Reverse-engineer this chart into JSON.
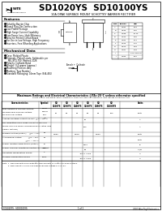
{
  "bg_color": "#ffffff",
  "title": "SD1020YS  SD10100YS",
  "subtitle": "10A DPAK SURFACE MOUNT SCHOTTKY BARRIER RECTIFIER",
  "features_title": "Features",
  "features": [
    "Schottky Barrier Chip",
    "Guard Ring Die Construction",
    "Low Profile Package",
    "High Surge Current Capability",
    "Low Power Loss, High Efficiency",
    "Ideal for Printed Circuit Board",
    "For Use in Low Voltage, High Frequency",
    "Inverters, Free Wheeling Applications"
  ],
  "mech_title": "Mechanical Data",
  "mech": [
    "Case: Molded Plastic",
    "Terminals: Plated Leads, Solderable per",
    "MIL-STD-750, Method 2026",
    "Polarity: Cathode Band",
    "Weight: 0.4 grams (approx.)",
    "Mounting Position: Any",
    "Marking: Type Number",
    "Standard Packaging: 16mm Tape (EIA-481)"
  ],
  "dim_cols": [
    "Dim",
    "Inches",
    "mm"
  ],
  "dim_data": [
    [
      "A",
      "0.232",
      "5.89"
    ],
    [
      "B",
      "0.189",
      "4.80"
    ],
    [
      "C",
      "0.398",
      "10.10"
    ],
    [
      "D",
      "0.060",
      "1.52"
    ],
    [
      "E",
      "0.044",
      "1.12"
    ],
    [
      "F",
      "0.055",
      "1.40"
    ],
    [
      "G",
      "0.100",
      "2.54"
    ],
    [
      "H",
      "0.041",
      "1.04"
    ],
    [
      "I",
      "",
      "0.95 Typical"
    ],
    [
      "J",
      "0.236",
      "6.00"
    ]
  ],
  "table_title": "Maximum Ratings and Electrical Characteristics @TA=25°C unless otherwise specified",
  "table_note": "Single Phase, half wave, 60Hz, resistive or inductive load. For capacitive load, derate current by 20%.",
  "col_headers": [
    "Characteristics",
    "Symbol",
    "SD\n1020YS",
    "SD\n1030YS",
    "SD\n1040YS",
    "SD\n1060YS",
    "SD\n1080YS",
    "SD\n10100YS",
    "Units"
  ],
  "rows": [
    {
      "char": [
        "Peak Repetitive Reverse Voltage",
        "Working Peak Reverse Voltage",
        "DC Blocking Voltage"
      ],
      "sym": [
        "VRRM",
        "VRWM",
        "VDC"
      ],
      "vals": [
        "20",
        "30",
        "40",
        "60",
        "80",
        "100",
        "Volts"
      ]
    },
    {
      "char": [
        "Average Rectified Output Current  @TA=105°C"
      ],
      "sym": [
        "IO"
      ],
      "vals": [
        "",
        "",
        "",
        "",
        "",
        "10",
        "A"
      ]
    },
    {
      "char": [
        "Non-Repetitive Peak Surge Current 8.3ms",
        "Single half sine-wave superimposed on rated load",
        "(JEDEC Method)"
      ],
      "sym": [
        "IFSM"
      ],
      "vals": [
        "",
        "",
        "",
        "",
        "",
        "100",
        "A"
      ]
    },
    {
      "char": [
        "Forward Voltage(Note 1)     @IF = 10A"
      ],
      "sym": [
        "VF"
      ],
      "vals": [
        "0.550",
        "",
        "0.575",
        "",
        "0.600",
        "",
        "Volts"
      ]
    },
    {
      "char": [
        "At Maximum Rating           @IF = 20A",
        "                                      @TA = 100°C"
      ],
      "sym": [
        "VF"
      ],
      "vals": [
        "",
        "",
        "",
        "",
        "",
        "",
        "Volts"
      ]
    },
    {
      "char": [
        "Typical Junction Capacitance (Note 2)"
      ],
      "sym": [
        "CJ"
      ],
      "vals": [
        "",
        "",
        "",
        "",
        "",
        "4000",
        "pF"
      ]
    },
    {
      "char": [
        "Typical Thermal Resistance Junction-to-Ambient"
      ],
      "sym": [
        "RθJA"
      ],
      "vals": [
        "",
        "",
        "",
        "",
        "",
        "60",
        "°C/W"
      ]
    },
    {
      "char": [
        "Operating Temperature Range"
      ],
      "sym": [
        "TJ"
      ],
      "vals": [
        "",
        "",
        "",
        "",
        "",
        "-55 to +150",
        "°C"
      ]
    },
    {
      "char": [
        "Storage Temperature Range"
      ],
      "sym": [
        "TSTG"
      ],
      "vals": [
        "",
        "",
        "",
        "",
        "",
        "-55 to +150",
        "°C"
      ]
    }
  ],
  "notes": [
    "Note: 1. Measured with pulse width ≤ 300μs and duty cycle ≤ 2.0% pulse method.",
    "         2. Measured at 1.0 MHz and applied reverse voltage of 4.0V DC."
  ],
  "footer_left": "SD1020YS - SD10100YS",
  "footer_mid": "1 of 1",
  "footer_right": "2000 Won-Top Electronics"
}
